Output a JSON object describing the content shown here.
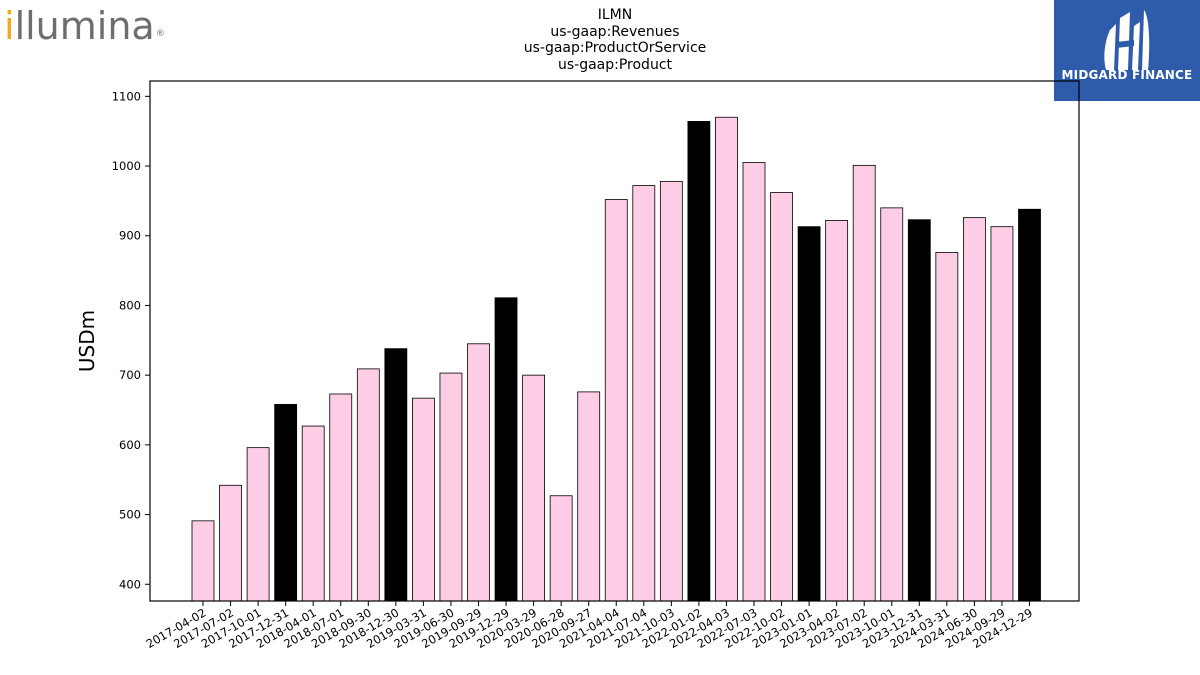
{
  "logos": {
    "left": "illumina",
    "right": "MIDGARD FINANCE"
  },
  "colors": {
    "annual_bar": "#000000",
    "quarter_bar": "#fccde5",
    "bar_edge": "#000000",
    "midgard_bg": "#2f5bab",
    "illumina_accent": "#f4a81d",
    "illumina_text": "#6e6e6e"
  },
  "chart_data": {
    "type": "bar",
    "title_lines": [
      "ILMN",
      "us-gaap:Revenues",
      "us-gaap:ProductOrService",
      "us-gaap:Product"
    ],
    "ylabel": "USDm",
    "xlabel": "",
    "ylim": [
      376,
      1122
    ],
    "yticks": [
      400,
      500,
      600,
      700,
      800,
      900,
      1000,
      1100
    ],
    "grid": false,
    "legend": "none",
    "categories": [
      "2017-04-02",
      "2017-07-02",
      "2017-10-01",
      "2017-12-31",
      "2018-04-01",
      "2018-07-01",
      "2018-09-30",
      "2018-12-30",
      "2019-03-31",
      "2019-06-30",
      "2019-09-29",
      "2019-12-29",
      "2020-03-29",
      "2020-06-28",
      "2020-09-27",
      "2021-04-04",
      "2021-07-04",
      "2021-10-03",
      "2022-01-02",
      "2022-04-03",
      "2022-07-03",
      "2022-10-02",
      "2023-01-01",
      "2023-04-02",
      "2023-07-02",
      "2023-10-01",
      "2023-12-31",
      "2024-03-31",
      "2024-06-30",
      "2024-09-29",
      "2024-12-29"
    ],
    "values": [
      491,
      542,
      596,
      658,
      627,
      673,
      709,
      738,
      667,
      703,
      745,
      811,
      700,
      527,
      676,
      952,
      972,
      978,
      1064,
      1070,
      1005,
      962,
      913,
      922,
      1001,
      940,
      923,
      876,
      926,
      913,
      938
    ],
    "annual": [
      false,
      false,
      false,
      true,
      false,
      false,
      false,
      true,
      false,
      false,
      false,
      true,
      false,
      false,
      false,
      false,
      false,
      false,
      true,
      false,
      false,
      false,
      true,
      false,
      false,
      false,
      true,
      false,
      false,
      false,
      true
    ]
  }
}
